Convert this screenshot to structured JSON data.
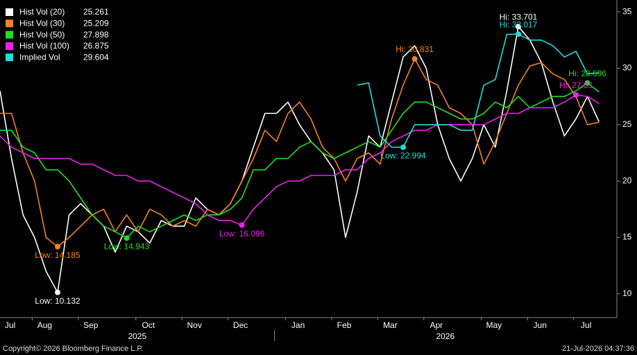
{
  "chart_data": {
    "type": "line",
    "categories": [
      null,
      "Jul",
      null,
      null,
      "Aug",
      null,
      null,
      null,
      "Sep",
      null,
      null,
      null,
      null,
      "Oct",
      null,
      null,
      null,
      "Nov",
      null,
      null,
      null,
      "Dec",
      null,
      null,
      null,
      null,
      "Jan",
      null,
      null,
      null,
      "Feb",
      null,
      null,
      null,
      "Mar",
      null,
      null,
      null,
      "Apr",
      null,
      null,
      null,
      null,
      "May",
      null,
      null,
      null,
      "Jun",
      null,
      null,
      null,
      "Jul",
      null
    ],
    "x_groups": [
      {
        "label": "2025"
      },
      {
        "label": "2026"
      }
    ],
    "series": [
      {
        "name": "Hist Vol (20)",
        "color": "#ffffff",
        "values": [
          28,
          22,
          17,
          15,
          12,
          10.132,
          17,
          18,
          17,
          16,
          13.7,
          16,
          15.5,
          14.5,
          16.5,
          16,
          16,
          18.5,
          17.5,
          17,
          18,
          20,
          23,
          26,
          26,
          27,
          25,
          23.5,
          22.5,
          21,
          15,
          19,
          24,
          23,
          27,
          31,
          32,
          30,
          25,
          22,
          20,
          22,
          25,
          23,
          28,
          33.701,
          32.5,
          30.5,
          27,
          24,
          25.5,
          27.5,
          25.261
        ],
        "annotations": [
          {
            "label": "Low: 10.132"
          },
          {
            "label": "Hi: 33.701"
          }
        ]
      },
      {
        "name": "Hist Vol (30)",
        "color": "#f58220",
        "values": [
          26,
          26,
          22.5,
          20,
          15,
          14.185,
          15,
          16,
          17,
          17.5,
          15.5,
          17,
          15.5,
          17.5,
          17,
          16,
          16.5,
          16,
          17.5,
          17,
          18,
          20,
          22,
          24.5,
          23.5,
          26,
          27,
          25.5,
          23,
          22,
          20,
          22,
          22.5,
          21.5,
          25.5,
          28.5,
          30.831,
          29,
          28.5,
          26.5,
          26,
          25,
          21.5,
          23.5,
          26,
          28.5,
          30.2,
          30.5,
          29.5,
          29,
          27.5,
          25,
          25.209
        ],
        "annotations": [
          {
            "label": "Low: 14.185"
          },
          {
            "label": "Hi: 30.831"
          }
        ]
      },
      {
        "name": "Hist Vol (50)",
        "color": "#22dd22",
        "values": [
          24.5,
          24.5,
          23,
          22.5,
          21,
          21,
          20,
          18.5,
          17,
          16,
          15.5,
          14.943,
          16,
          15.5,
          16,
          16.5,
          17,
          16.5,
          17,
          17,
          17.5,
          18.5,
          21,
          21,
          22,
          22,
          23,
          23.5,
          22.5,
          22,
          22.5,
          23,
          23.5,
          23,
          24.5,
          26,
          27,
          27,
          26.5,
          26,
          25.5,
          25.5,
          26,
          27,
          26.5,
          27.5,
          26.5,
          27,
          27.5,
          27.5,
          28,
          28.696,
          27.898
        ],
        "annotations": [
          {
            "label": "Low: 14.943"
          },
          {
            "label": "Hi: 28.696"
          }
        ]
      },
      {
        "name": "Hist Vol (100)",
        "color": "#ee22ee",
        "values": [
          24,
          23,
          22.5,
          22,
          22,
          22,
          22,
          21.5,
          21.5,
          21,
          20.5,
          20.5,
          20,
          20,
          19.5,
          19,
          18.5,
          18,
          17,
          16.5,
          16.5,
          16.096,
          17.5,
          18.5,
          19.5,
          20,
          20,
          20.5,
          20.5,
          20.5,
          21,
          21,
          22,
          22.5,
          23.5,
          24,
          24.5,
          24.5,
          25,
          25,
          25,
          25,
          25,
          25.5,
          26,
          26,
          26.5,
          26.5,
          26.5,
          27,
          27.63,
          27.5,
          26.875
        ],
        "annotations": [
          {
            "label": "Low: 16.096"
          },
          {
            "label": "Hi: 27.63"
          }
        ]
      },
      {
        "name": "Implied Vol",
        "color": "#22dddd",
        "values": [
          null,
          null,
          null,
          null,
          null,
          null,
          null,
          null,
          null,
          null,
          null,
          null,
          null,
          null,
          null,
          null,
          null,
          null,
          null,
          null,
          null,
          null,
          null,
          null,
          null,
          null,
          null,
          null,
          null,
          null,
          null,
          28.5,
          28.7,
          24,
          23,
          22.994,
          25,
          25,
          25,
          25,
          24.5,
          24.5,
          28.5,
          29,
          33,
          33.017,
          32.5,
          32.5,
          32,
          31,
          31.5,
          29.5,
          29.604
        ],
        "annotations": [
          {
            "label": "Low: 22.994"
          },
          {
            "label": "Hi: 33.017"
          }
        ]
      }
    ],
    "ylim": [
      7.9,
      36.05
    ],
    "yticks": [
      10,
      15,
      20,
      25,
      30,
      35
    ],
    "y_axis_side": "right",
    "legend": "top-left",
    "copyright": "Copyright© 2026 Bloomberg Finance L.P.",
    "timestamp": "21-Jul-2026 04:37:36"
  }
}
